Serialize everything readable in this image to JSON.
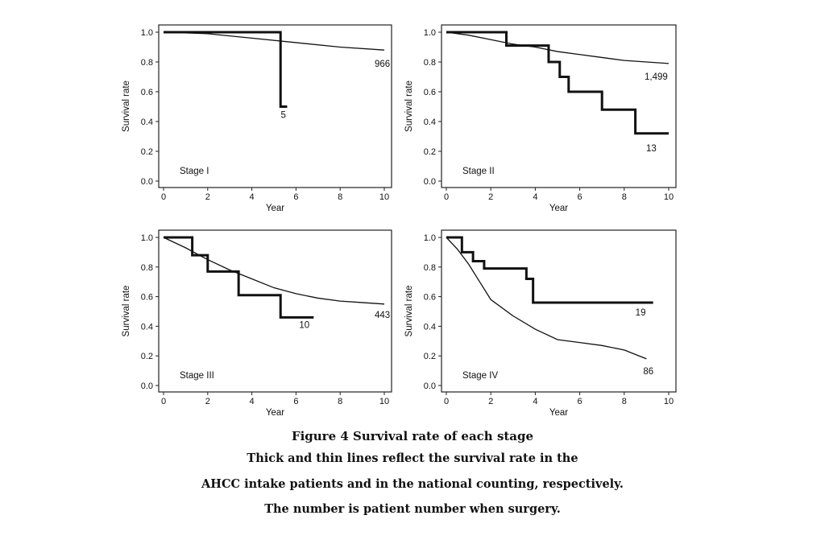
{
  "chart_data": [
    {
      "type": "line",
      "stage_label": "Stage I",
      "xlabel": "Year",
      "ylabel": "Survival rate",
      "xlim": [
        0,
        10
      ],
      "ylim": [
        0,
        1.0
      ],
      "xticks": [
        "0",
        "2",
        "4",
        "6",
        "8",
        "10"
      ],
      "yticks": [
        "0.0",
        "0.2",
        "0.4",
        "0.6",
        "0.8",
        "1.0"
      ],
      "series": [
        {
          "name": "thick",
          "label": "5",
          "step": true,
          "x": [
            0,
            5.3,
            5.3,
            5.6
          ],
          "y": [
            1.0,
            1.0,
            0.5,
            0.5
          ]
        },
        {
          "name": "thin",
          "label": "966",
          "step": false,
          "x": [
            0,
            2,
            4,
            6,
            8,
            10
          ],
          "y": [
            1.0,
            0.99,
            0.96,
            0.93,
            0.9,
            0.88
          ]
        }
      ]
    },
    {
      "type": "line",
      "stage_label": "Stage II",
      "xlabel": "Year",
      "ylabel": "Survival rate",
      "xlim": [
        0,
        10
      ],
      "ylim": [
        0,
        1.0
      ],
      "xticks": [
        "0",
        "2",
        "4",
        "6",
        "8",
        "10"
      ],
      "yticks": [
        "0.0",
        "0.2",
        "0.4",
        "0.6",
        "0.8",
        "1.0"
      ],
      "series": [
        {
          "name": "thick",
          "label": "13",
          "step": true,
          "x": [
            0,
            2.7,
            2.7,
            4.6,
            4.6,
            5.1,
            5.1,
            5.5,
            5.5,
            7.0,
            7.0,
            8.5,
            8.5,
            10
          ],
          "y": [
            1.0,
            1.0,
            0.91,
            0.91,
            0.8,
            0.8,
            0.7,
            0.7,
            0.6,
            0.6,
            0.48,
            0.48,
            0.32,
            0.32
          ]
        },
        {
          "name": "thin",
          "label": "1,499",
          "step": false,
          "x": [
            0,
            1,
            2,
            3,
            4,
            5,
            6,
            7,
            8,
            9,
            10
          ],
          "y": [
            1.0,
            0.98,
            0.95,
            0.92,
            0.9,
            0.87,
            0.85,
            0.83,
            0.81,
            0.8,
            0.79
          ]
        }
      ]
    },
    {
      "type": "line",
      "stage_label": "Stage III",
      "xlabel": "Year",
      "ylabel": "Survival rate",
      "xlim": [
        0,
        10
      ],
      "ylim": [
        0,
        1.0
      ],
      "xticks": [
        "0",
        "2",
        "4",
        "6",
        "8",
        "10"
      ],
      "yticks": [
        "0.0",
        "0.2",
        "0.4",
        "0.6",
        "0.8",
        "1.0"
      ],
      "series": [
        {
          "name": "thick",
          "label": "10",
          "step": true,
          "x": [
            0,
            1.3,
            1.3,
            2.0,
            2.0,
            3.4,
            3.4,
            5.3,
            5.3,
            6.8
          ],
          "y": [
            1.0,
            1.0,
            0.88,
            0.88,
            0.77,
            0.77,
            0.61,
            0.61,
            0.46,
            0.46
          ]
        },
        {
          "name": "thin",
          "label": "443",
          "step": false,
          "x": [
            0,
            1,
            2,
            3,
            4,
            5,
            6,
            7,
            8,
            9,
            10
          ],
          "y": [
            1.0,
            0.93,
            0.85,
            0.78,
            0.72,
            0.66,
            0.62,
            0.59,
            0.57,
            0.56,
            0.55
          ]
        }
      ]
    },
    {
      "type": "line",
      "stage_label": "Stage IV",
      "xlabel": "Year",
      "ylabel": "Survival rate",
      "xlim": [
        0,
        10
      ],
      "ylim": [
        0,
        1.0
      ],
      "xticks": [
        "0",
        "2",
        "4",
        "6",
        "8",
        "10"
      ],
      "yticks": [
        "0.0",
        "0.2",
        "0.4",
        "0.6",
        "0.8",
        "1.0"
      ],
      "series": [
        {
          "name": "thick",
          "label": "19",
          "step": true,
          "x": [
            0,
            0.7,
            0.7,
            1.2,
            1.2,
            1.7,
            1.7,
            3.6,
            3.6,
            3.9,
            3.9,
            9.3
          ],
          "y": [
            1.0,
            1.0,
            0.9,
            0.9,
            0.84,
            0.84,
            0.79,
            0.79,
            0.72,
            0.72,
            0.56,
            0.56
          ]
        },
        {
          "name": "thin",
          "label": "86",
          "step": false,
          "x": [
            0,
            0.5,
            1,
            1.5,
            2,
            3,
            4,
            5,
            6,
            7,
            8,
            9
          ],
          "y": [
            1.0,
            0.92,
            0.82,
            0.7,
            0.58,
            0.47,
            0.38,
            0.31,
            0.29,
            0.27,
            0.24,
            0.18
          ]
        }
      ]
    }
  ],
  "caption": {
    "title": "Figure 4 Survival rate of each stage",
    "line1": "Thick and thin lines reflect the survival rate in the",
    "line2": "AHCC intake patients and in the national counting, respectively.",
    "line3": "The number is patient number when surgery."
  }
}
